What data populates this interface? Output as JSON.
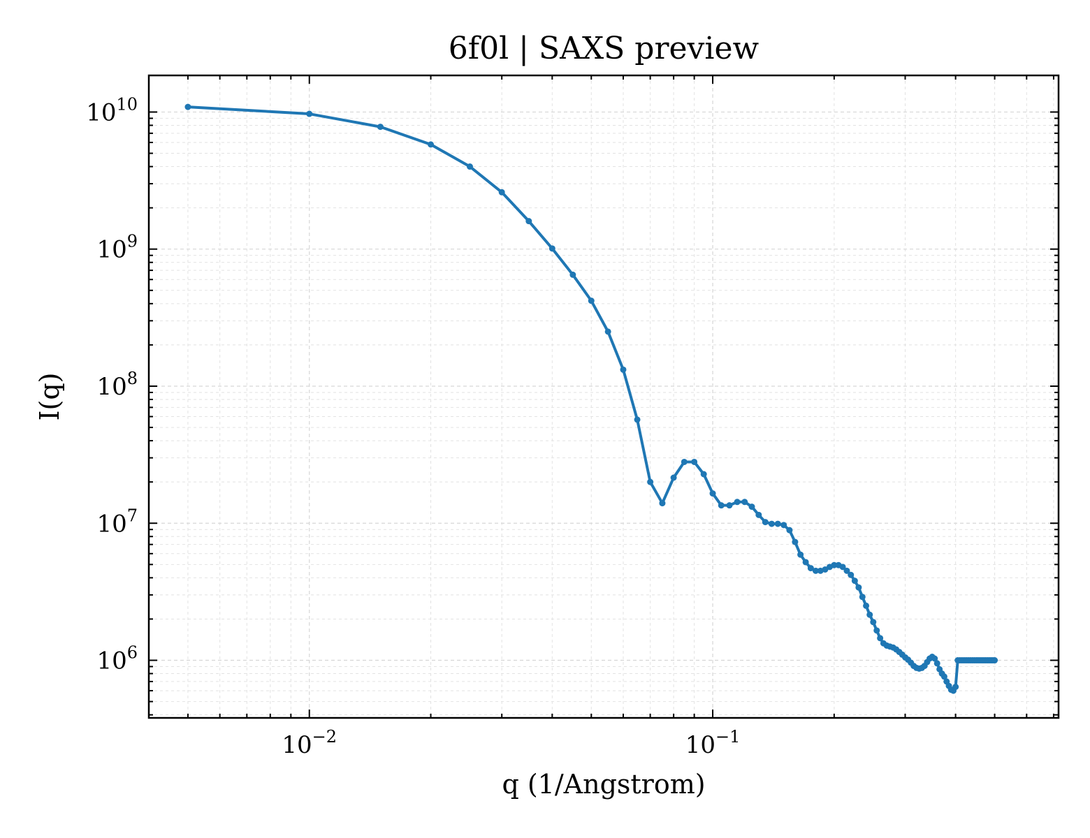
{
  "chart_data": {
    "type": "line",
    "title": "6f0l | SAXS preview",
    "xlabel": "q (1/Angstrom)",
    "ylabel": "I(q)",
    "xscale": "log",
    "yscale": "log",
    "xlim": [
      0.004,
      0.72
    ],
    "ylim": [
      380000,
      18500000000
    ],
    "grid": true,
    "series_color": "#1f77b4",
    "x_ticks": [
      {
        "value": 0.01,
        "base": "10",
        "exp": "−2"
      },
      {
        "value": 0.1,
        "base": "10",
        "exp": "−1"
      }
    ],
    "y_ticks": [
      {
        "value": 1000000,
        "base": "10",
        "exp": "6"
      },
      {
        "value": 10000000,
        "base": "10",
        "exp": "7"
      },
      {
        "value": 100000000,
        "base": "10",
        "exp": "8"
      },
      {
        "value": 1000000000,
        "base": "10",
        "exp": "9"
      },
      {
        "value": 10000000000,
        "base": "10",
        "exp": "10"
      }
    ],
    "series": [
      {
        "x": [
          0.005,
          0.01,
          0.015,
          0.02,
          0.025,
          0.03,
          0.035,
          0.04,
          0.045,
          0.05,
          0.055,
          0.06,
          0.065,
          0.07,
          0.075,
          0.08,
          0.085,
          0.09,
          0.095,
          0.1,
          0.105,
          0.11,
          0.115,
          0.12,
          0.125,
          0.13,
          0.135,
          0.14,
          0.145,
          0.15,
          0.155,
          0.16,
          0.165,
          0.17,
          0.175,
          0.18,
          0.185,
          0.19,
          0.195,
          0.2,
          0.205,
          0.21,
          0.215,
          0.22,
          0.225,
          0.23,
          0.235,
          0.24,
          0.245,
          0.25,
          0.255,
          0.26,
          0.265,
          0.27,
          0.275,
          0.28,
          0.285,
          0.29,
          0.295,
          0.3,
          0.305,
          0.31,
          0.315,
          0.32,
          0.325,
          0.33,
          0.335,
          0.34,
          0.345,
          0.35,
          0.355,
          0.36,
          0.365,
          0.37,
          0.375,
          0.38,
          0.385,
          0.39,
          0.395,
          0.4,
          0.405,
          0.41,
          0.415,
          0.42,
          0.425,
          0.43,
          0.435,
          0.44,
          0.445,
          0.45,
          0.455,
          0.46,
          0.465,
          0.47,
          0.475,
          0.48,
          0.485,
          0.49,
          0.495,
          0.5
        ],
        "y": [
          10900000000,
          9700000000,
          7800000000,
          5800000000,
          4000000000,
          2600000000,
          1600000000,
          1010000000,
          650000000,
          420000000,
          250000000,
          132000000,
          57000000,
          20000000,
          14000000,
          21500000,
          28000000,
          28000000,
          22800000,
          16500000,
          13500000,
          13500000,
          14300000,
          14300000,
          13200000,
          11500000,
          10200000,
          9900000,
          9900000,
          9700000,
          8900000,
          7300000,
          5900000,
          5200000,
          4700000,
          4500000,
          4500000,
          4600000,
          4800000,
          4950000,
          4950000,
          4800000,
          4500000,
          4200000,
          3800000,
          3400000,
          2900000,
          2500000,
          2150000,
          1900000,
          1650000,
          1450000,
          1330000,
          1280000,
          1260000,
          1240000,
          1200000,
          1150000,
          1100000,
          1050000,
          1010000,
          960000,
          910000,
          880000,
          870000,
          880000,
          910000,
          970000,
          1030000,
          1060000,
          1030000,
          950000,
          860000,
          800000,
          760000,
          700000,
          650000,
          610000,
          600000,
          640000,
          1000000,
          1000000,
          1000000,
          1000000,
          1000000,
          1000000,
          1000000,
          1000000,
          1000000,
          1000000,
          1000000,
          1000000,
          1000000,
          1000000,
          1000000,
          1000000,
          1000000,
          1000000,
          1000000,
          1000000
        ]
      }
    ]
  }
}
